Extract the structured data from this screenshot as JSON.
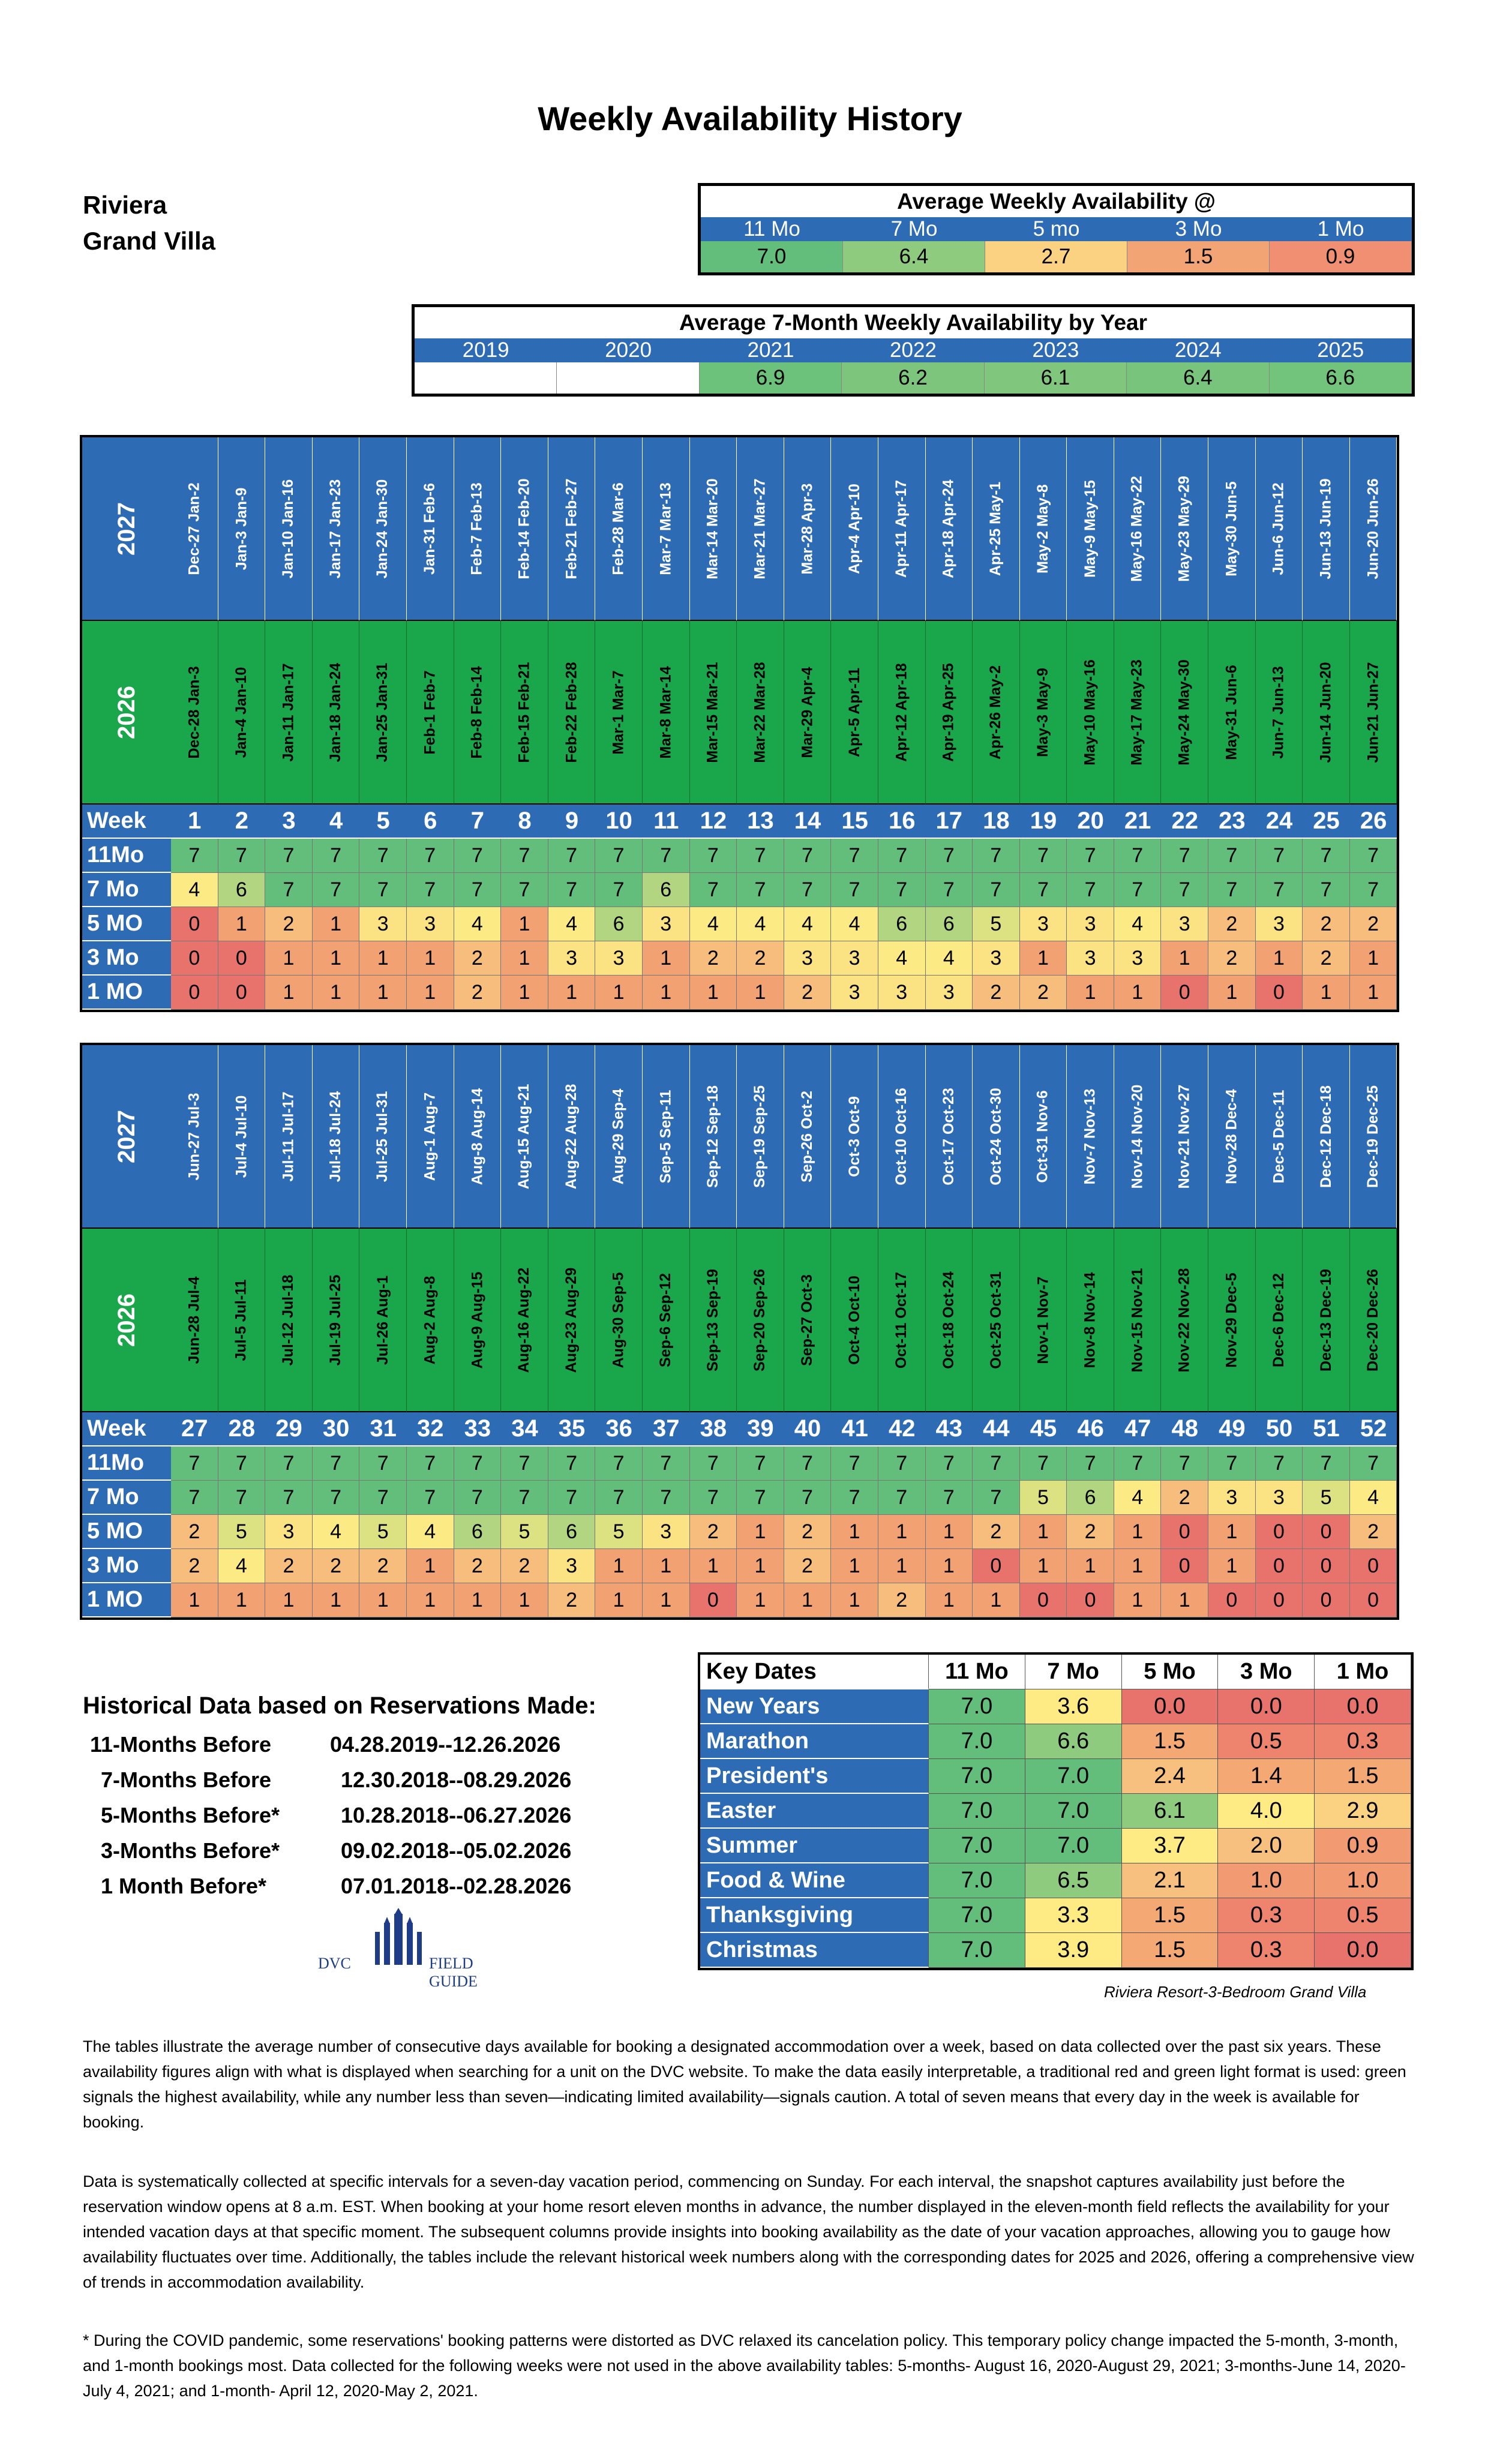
{
  "title": "Weekly Availability History",
  "resort": {
    "line1": "Riviera",
    "line2": "Grand Villa"
  },
  "avg_weekly": {
    "title": "Average Weekly Availability @",
    "headers": [
      "11 Mo",
      "7 Mo",
      "5 mo",
      "3 Mo",
      "1 Mo"
    ],
    "values": [
      "7.0",
      "6.4",
      "2.7",
      "1.5",
      "0.9"
    ]
  },
  "avg_by_year": {
    "title": "Average 7-Month Weekly  Availability by Year",
    "years": [
      "2019",
      "2020",
      "2021",
      "2022",
      "2023",
      "2024",
      "2025"
    ],
    "values": [
      "",
      "",
      "6.9",
      "6.2",
      "6.1",
      "6.4",
      "6.6"
    ]
  },
  "color_scale": {
    "0": "#E8736C",
    "1": "#F2A173",
    "2": "#F6BD7D",
    "3": "#FBE283",
    "4": "#FCEB84",
    "5": "#DCE181",
    "6": "#B1D580",
    "7": "#63BE7B"
  },
  "row_labels": {
    "year_top": "2027",
    "year_bottom": "2026",
    "week": "Week",
    "r11": "11Mo",
    "r7": "7 Mo",
    "r5": "5 MO",
    "r3": "3 Mo",
    "r1": "1 MO"
  },
  "half1": {
    "dates_2027": [
      "Dec-27 Jan-2",
      "Jan-3 Jan-9",
      "Jan-10 Jan-16",
      "Jan-17 Jan-23",
      "Jan-24 Jan-30",
      "Jan-31 Feb-6",
      "Feb-7 Feb-13",
      "Feb-14 Feb-20",
      "Feb-21 Feb-27",
      "Feb-28 Mar-6",
      "Mar-7 Mar-13",
      "Mar-14 Mar-20",
      "Mar-21 Mar-27",
      "Mar-28 Apr-3",
      "Apr-4 Apr-10",
      "Apr-11 Apr-17",
      "Apr-18 Apr-24",
      "Apr-25 May-1",
      "May-2 May-8",
      "May-9 May-15",
      "May-16 May-22",
      "May-23 May-29",
      "May-30 Jun-5",
      "Jun-6 Jun-12",
      "Jun-13 Jun-19",
      "Jun-20 Jun-26"
    ],
    "dates_2026": [
      "Dec-28 Jan-3",
      "Jan-4 Jan-10",
      "Jan-11 Jan-17",
      "Jan-18 Jan-24",
      "Jan-25 Jan-31",
      "Feb-1 Feb-7",
      "Feb-8 Feb-14",
      "Feb-15 Feb-21",
      "Feb-22 Feb-28",
      "Mar-1 Mar-7",
      "Mar-8 Mar-14",
      "Mar-15 Mar-21",
      "Mar-22 Mar-28",
      "Mar-29 Apr-4",
      "Apr-5 Apr-11",
      "Apr-12 Apr-18",
      "Apr-19 Apr-25",
      "Apr-26 May-2",
      "May-3 May-9",
      "May-10 May-16",
      "May-17 May-23",
      "May-24 May-30",
      "May-31 Jun-6",
      "Jun-7 Jun-13",
      "Jun-14 Jun-20",
      "Jun-21 Jun-27"
    ],
    "weeks": [
      "1",
      "2",
      "3",
      "4",
      "5",
      "6",
      "7",
      "8",
      "9",
      "10",
      "11",
      "12",
      "13",
      "14",
      "15",
      "16",
      "17",
      "18",
      "19",
      "20",
      "21",
      "22",
      "23",
      "24",
      "25",
      "26"
    ],
    "r11": [
      7,
      7,
      7,
      7,
      7,
      7,
      7,
      7,
      7,
      7,
      7,
      7,
      7,
      7,
      7,
      7,
      7,
      7,
      7,
      7,
      7,
      7,
      7,
      7,
      7,
      7
    ],
    "r7": [
      4,
      6,
      7,
      7,
      7,
      7,
      7,
      7,
      7,
      7,
      6,
      7,
      7,
      7,
      7,
      7,
      7,
      7,
      7,
      7,
      7,
      7,
      7,
      7,
      7,
      7
    ],
    "r5": [
      0,
      1,
      2,
      1,
      3,
      3,
      4,
      1,
      4,
      6,
      3,
      4,
      4,
      4,
      4,
      6,
      6,
      5,
      3,
      3,
      4,
      3,
      2,
      3,
      2,
      2
    ],
    "r3": [
      0,
      0,
      1,
      1,
      1,
      1,
      2,
      1,
      3,
      3,
      1,
      2,
      2,
      3,
      3,
      4,
      4,
      3,
      1,
      3,
      3,
      1,
      2,
      1,
      2,
      1
    ],
    "r1": [
      0,
      0,
      1,
      1,
      1,
      1,
      2,
      1,
      1,
      1,
      1,
      1,
      1,
      2,
      3,
      3,
      3,
      2,
      2,
      1,
      1,
      0,
      1,
      0,
      1,
      1
    ]
  },
  "half2": {
    "dates_2027": [
      "Jun-27 Jul-3",
      "Jul-4 Jul-10",
      "Jul-11 Jul-17",
      "Jul-18 Jul-24",
      "Jul-25 Jul-31",
      "Aug-1 Aug-7",
      "Aug-8 Aug-14",
      "Aug-15 Aug-21",
      "Aug-22 Aug-28",
      "Aug-29 Sep-4",
      "Sep-5 Sep-11",
      "Sep-12 Sep-18",
      "Sep-19 Sep-25",
      "Sep-26 Oct-2",
      "Oct-3 Oct-9",
      "Oct-10 Oct-16",
      "Oct-17 Oct-23",
      "Oct-24 Oct-30",
      "Oct-31 Nov-6",
      "Nov-7 Nov-13",
      "Nov-14 Nov-20",
      "Nov-21 Nov-27",
      "Nov-28 Dec-4",
      "Dec-5 Dec-11",
      "Dec-12 Dec-18",
      "Dec-19 Dec-25"
    ],
    "dates_2026": [
      "Jun-28 Jul-4",
      "Jul-5 Jul-11",
      "Jul-12 Jul-18",
      "Jul-19 Jul-25",
      "Jul-26 Aug-1",
      "Aug-2 Aug-8",
      "Aug-9 Aug-15",
      "Aug-16 Aug-22",
      "Aug-23 Aug-29",
      "Aug-30 Sep-5",
      "Sep-6 Sep-12",
      "Sep-13 Sep-19",
      "Sep-20 Sep-26",
      "Sep-27 Oct-3",
      "Oct-4 Oct-10",
      "Oct-11 Oct-17",
      "Oct-18 Oct-24",
      "Oct-25 Oct-31",
      "Nov-1 Nov-7",
      "Nov-8 Nov-14",
      "Nov-15 Nov-21",
      "Nov-22 Nov-28",
      "Nov-29 Dec-5",
      "Dec-6 Dec-12",
      "Dec-13 Dec-19",
      "Dec-20 Dec-26"
    ],
    "weeks": [
      "27",
      "28",
      "29",
      "30",
      "31",
      "32",
      "33",
      "34",
      "35",
      "36",
      "37",
      "38",
      "39",
      "40",
      "41",
      "42",
      "43",
      "44",
      "45",
      "46",
      "47",
      "48",
      "49",
      "50",
      "51",
      "52"
    ],
    "r11": [
      7,
      7,
      7,
      7,
      7,
      7,
      7,
      7,
      7,
      7,
      7,
      7,
      7,
      7,
      7,
      7,
      7,
      7,
      7,
      7,
      7,
      7,
      7,
      7,
      7,
      7
    ],
    "r7": [
      7,
      7,
      7,
      7,
      7,
      7,
      7,
      7,
      7,
      7,
      7,
      7,
      7,
      7,
      7,
      7,
      7,
      7,
      5,
      6,
      4,
      2,
      3,
      3,
      5,
      4
    ],
    "r5": [
      2,
      5,
      3,
      4,
      5,
      4,
      6,
      5,
      6,
      5,
      3,
      2,
      1,
      2,
      1,
      1,
      1,
      2,
      1,
      2,
      1,
      0,
      1,
      0,
      0,
      2
    ],
    "r3": [
      2,
      4,
      2,
      2,
      2,
      1,
      2,
      2,
      3,
      1,
      1,
      1,
      1,
      2,
      1,
      1,
      1,
      0,
      1,
      1,
      1,
      0,
      1,
      0,
      0,
      0
    ],
    "r1": [
      1,
      1,
      1,
      1,
      1,
      1,
      1,
      1,
      2,
      1,
      1,
      0,
      1,
      1,
      1,
      2,
      1,
      1,
      0,
      0,
      1,
      1,
      0,
      0,
      0,
      0
    ]
  },
  "historical": {
    "title": "Historical Data based on Reservations Made:",
    "rows": [
      {
        "label": "11-Months Before",
        "range": "04.28.2019--12.26.2026"
      },
      {
        "label": "7-Months Before",
        "range": "12.30.2018--08.29.2026"
      },
      {
        "label": "5-Months Before*",
        "range": "10.28.2018--06.27.2026"
      },
      {
        "label": "3-Months Before*",
        "range": "09.02.2018--05.02.2026"
      },
      {
        "label": "1 Month Before*",
        "range": "07.01.2018--02.28.2026"
      }
    ]
  },
  "logo": {
    "left": "DVC",
    "right": "FIELD GUIDE"
  },
  "key_dates": {
    "headers": [
      "Key Dates",
      "11 Mo",
      "7 Mo",
      "5 Mo",
      "3 Mo",
      "1 Mo"
    ],
    "rows": [
      {
        "name": "New Years",
        "values": [
          "7.0",
          "3.6",
          "0.0",
          "0.0",
          "0.0"
        ]
      },
      {
        "name": "Marathon",
        "values": [
          "7.0",
          "6.6",
          "1.5",
          "0.5",
          "0.3"
        ]
      },
      {
        "name": "President's",
        "values": [
          "7.0",
          "7.0",
          "2.4",
          "1.4",
          "1.5"
        ]
      },
      {
        "name": "Easter",
        "values": [
          "7.0",
          "7.0",
          "6.1",
          "4.0",
          "2.9"
        ]
      },
      {
        "name": "Summer",
        "values": [
          "7.0",
          "7.0",
          "3.7",
          "2.0",
          "0.9"
        ]
      },
      {
        "name": "Food & Wine",
        "values": [
          "7.0",
          "6.5",
          "2.1",
          "1.0",
          "1.0"
        ]
      },
      {
        "name": "Thanksgiving",
        "values": [
          "7.0",
          "3.3",
          "1.5",
          "0.3",
          "0.5"
        ]
      },
      {
        "name": "Christmas",
        "values": [
          "7.0",
          "3.9",
          "1.5",
          "0.3",
          "0.0"
        ]
      }
    ]
  },
  "caption": "Riviera Resort-3-Bedroom Grand Villa",
  "paragraphs": [
    "The tables illustrate the average number of consecutive days available for booking a designated accommodation over a week, based on data collected over the past six years. These availability figures align with what is displayed when searching for a unit on the DVC website. To make the data easily interpretable, a traditional red and green light format is used: green signals the highest availability, while any number less than seven—indicating limited availability—signals caution. A total of seven means that every day in the week is available for booking.",
    "Data is systematically collected at specific intervals for a seven-day vacation period, commencing on Sunday. For each interval, the snapshot captures availability just before the reservation window opens at 8 a.m. EST. When booking at your home resort eleven months in advance, the number displayed in the eleven-month field reflects the availability for your intended vacation days at that specific moment. The subsequent columns provide insights into booking availability as the date of your vacation approaches, allowing you to gauge how availability fluctuates over time. Additionally, the tables include the relevant historical week numbers along with the corresponding dates for 2025 and 2026, offering a comprehensive view of trends in accommodation availability.",
    "* During the COVID pandemic, some reservations' booking patterns were distorted as DVC relaxed its cancelation policy. This temporary policy change impacted the 5-month, 3-month, and 1-month bookings most. Data collected for the following weeks were not used in the above availability tables:  5-months- August 16, 2020-August 29, 2021; 3-months-June 14, 2020-July 4, 2021; and 1-month- April 12, 2020-May 2, 2021."
  ]
}
